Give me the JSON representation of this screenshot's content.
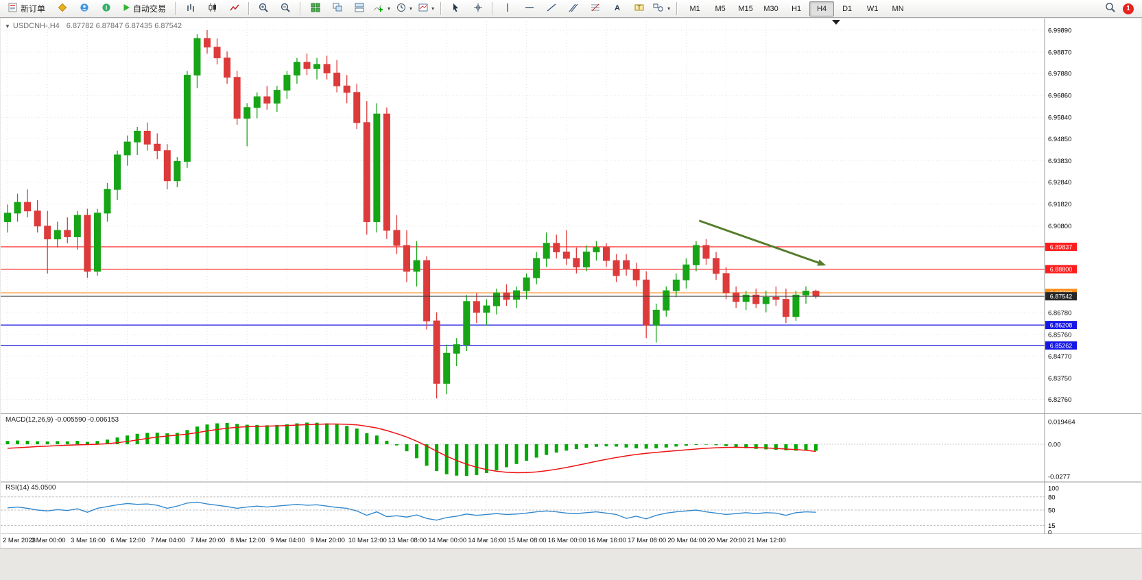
{
  "toolbar": {
    "new_order": "新订单",
    "auto_trading": "自动交易",
    "timeframes": [
      "M1",
      "M5",
      "M15",
      "M30",
      "H1",
      "H4",
      "D1",
      "W1",
      "MN"
    ],
    "active_timeframe": "H4",
    "notification_badge": "1"
  },
  "chart": {
    "title": "USDCNH-,H4",
    "ohlc": "6.87782 6.87847 6.87435 6.87542"
  },
  "indicators": {
    "macd": {
      "name": "MACD(12,26,9)",
      "main_value": "-0.005590",
      "signal_value": "-0.006153"
    },
    "rsi": {
      "name": "RSI(14)",
      "value": "45.0500"
    }
  },
  "colors": {
    "up": "#17a517",
    "down": "#dd3b3b",
    "macd_hist": "#00aa00",
    "macd_signal": "#ee1111",
    "rsi_line": "#3388cc",
    "grid": "#e3e3e3",
    "arrow": "#567d2b",
    "axis_text": "#000000",
    "red_line": "#ff2222",
    "blue_line": "#1414e0",
    "orange_line": "#ff8c19",
    "current_line": "#3c3c3c"
  },
  "chart_data": {
    "type": "candlestick",
    "title": "USDCNH-,H4",
    "ylim": [
      6.823,
      7.003
    ],
    "price_axis": [
      "6.99890",
      "6.98870",
      "6.97880",
      "6.96860",
      "6.95840",
      "6.94850",
      "6.93830",
      "6.92840",
      "6.91820",
      "6.90800",
      "6.86780",
      "6.85760",
      "6.84770",
      "6.83750",
      "6.82760"
    ],
    "hlines": [
      {
        "price": 6.89837,
        "label": "6.89837",
        "line": "#ff2222",
        "badge": "#ff1d1d"
      },
      {
        "price": 6.888,
        "label": "6.88800",
        "line": "#ff2222",
        "badge": "#ff1d1d"
      },
      {
        "price": 6.87702,
        "label": "6.87702",
        "line": "#ff8c19",
        "badge": "#ff8c19"
      },
      {
        "price": 6.86208,
        "label": "6.86208",
        "line": "#1414e0",
        "badge": "#1616e6"
      },
      {
        "price": 6.85262,
        "label": "6.85262",
        "line": "#1414e0",
        "badge": "#1616e6"
      }
    ],
    "current": {
      "price": 6.87542,
      "label": "6.87542",
      "line": "#3c3c3c",
      "badge": "#262626"
    },
    "candles": [
      [
        6.91,
        6.918,
        6.905,
        6.914
      ],
      [
        6.914,
        6.923,
        6.91,
        6.919
      ],
      [
        6.919,
        6.925,
        6.912,
        6.915
      ],
      [
        6.915,
        6.92,
        6.905,
        6.908
      ],
      [
        6.908,
        6.915,
        6.886,
        6.902
      ],
      [
        6.902,
        6.91,
        6.898,
        6.906
      ],
      [
        6.906,
        6.912,
        6.9,
        6.903
      ],
      [
        6.903,
        6.915,
        6.897,
        6.913
      ],
      [
        6.913,
        6.916,
        6.884,
        6.887
      ],
      [
        6.887,
        6.916,
        6.885,
        6.914
      ],
      [
        6.914,
        6.928,
        6.91,
        6.925
      ],
      [
        6.925,
        6.943,
        6.92,
        6.941
      ],
      [
        6.941,
        6.95,
        6.936,
        6.947
      ],
      [
        6.947,
        6.954,
        6.941,
        6.952
      ],
      [
        6.952,
        6.956,
        6.943,
        6.946
      ],
      [
        6.946,
        6.951,
        6.939,
        6.943
      ],
      [
        6.943,
        6.946,
        6.925,
        6.929
      ],
      [
        6.929,
        6.94,
        6.926,
        6.938
      ],
      [
        6.938,
        6.98,
        6.935,
        6.978
      ],
      [
        6.978,
        6.997,
        6.972,
        6.995
      ],
      [
        6.995,
        6.9989,
        6.988,
        6.991
      ],
      [
        6.991,
        6.995,
        6.983,
        6.986
      ],
      [
        6.986,
        6.989,
        6.974,
        6.977
      ],
      [
        6.977,
        6.98,
        6.955,
        6.958
      ],
      [
        6.958,
        6.965,
        6.945,
        6.963
      ],
      [
        6.963,
        6.97,
        6.958,
        6.968
      ],
      [
        6.968,
        6.973,
        6.962,
        6.965
      ],
      [
        6.965,
        6.973,
        6.961,
        6.971
      ],
      [
        6.971,
        6.98,
        6.967,
        6.978
      ],
      [
        6.978,
        6.986,
        6.974,
        6.984
      ],
      [
        6.984,
        6.988,
        6.978,
        6.981
      ],
      [
        6.981,
        6.986,
        6.976,
        6.983
      ],
      [
        6.983,
        6.987,
        6.976,
        6.979
      ],
      [
        6.979,
        6.985,
        6.97,
        6.973
      ],
      [
        6.973,
        6.978,
        6.965,
        6.97
      ],
      [
        6.97,
        6.974,
        6.953,
        6.956
      ],
      [
        6.956,
        6.966,
        6.904,
        6.91
      ],
      [
        6.91,
        6.965,
        6.905,
        6.96
      ],
      [
        6.96,
        6.963,
        6.902,
        6.906
      ],
      [
        6.906,
        6.913,
        6.895,
        6.899
      ],
      [
        6.899,
        6.906,
        6.882,
        6.887
      ],
      [
        6.887,
        6.901,
        6.88,
        6.892
      ],
      [
        6.892,
        6.894,
        6.86,
        6.864
      ],
      [
        6.864,
        6.868,
        6.828,
        6.835
      ],
      [
        6.835,
        6.853,
        6.83,
        6.849
      ],
      [
        6.849,
        6.856,
        6.843,
        6.853
      ],
      [
        6.853,
        6.876,
        6.85,
        6.873
      ],
      [
        6.873,
        6.877,
        6.863,
        6.868
      ],
      [
        6.868,
        6.874,
        6.862,
        6.871
      ],
      [
        6.871,
        6.879,
        6.867,
        6.877
      ],
      [
        6.877,
        6.881,
        6.871,
        6.874
      ],
      [
        6.874,
        6.88,
        6.87,
        6.878
      ],
      [
        6.878,
        6.886,
        6.874,
        6.884
      ],
      [
        6.884,
        6.896,
        6.881,
        6.893
      ],
      [
        6.893,
        6.905,
        6.889,
        6.9
      ],
      [
        6.9,
        6.904,
        6.893,
        6.896
      ],
      [
        6.896,
        6.906,
        6.89,
        6.893
      ],
      [
        6.893,
        6.898,
        6.886,
        6.889
      ],
      [
        6.889,
        6.899,
        6.887,
        6.896
      ],
      [
        6.896,
        6.901,
        6.892,
        6.898
      ],
      [
        6.898,
        6.9,
        6.889,
        6.892
      ],
      [
        6.892,
        6.895,
        6.882,
        6.885
      ],
      [
        6.892,
        6.895,
        6.885,
        6.888
      ],
      [
        6.888,
        6.891,
        6.88,
        6.883
      ],
      [
        6.883,
        6.887,
        6.856,
        6.862
      ],
      [
        6.862,
        6.872,
        6.854,
        6.869
      ],
      [
        6.869,
        6.88,
        6.866,
        6.878
      ],
      [
        6.878,
        6.886,
        6.875,
        6.883
      ],
      [
        6.883,
        6.893,
        6.879,
        6.89
      ],
      [
        6.89,
        6.901,
        6.887,
        6.899
      ],
      [
        6.899,
        6.902,
        6.89,
        6.893
      ],
      [
        6.893,
        6.896,
        6.883,
        6.886
      ],
      [
        6.886,
        6.889,
        6.874,
        6.877
      ],
      [
        6.877,
        6.88,
        6.87,
        6.873
      ],
      [
        6.873,
        6.878,
        6.869,
        6.876
      ],
      [
        6.876,
        6.879,
        6.87,
        6.872
      ],
      [
        6.872,
        6.878,
        6.868,
        6.875
      ],
      [
        6.875,
        6.88,
        6.871,
        6.874
      ],
      [
        6.874,
        6.879,
        6.863,
        6.866
      ],
      [
        6.866,
        6.878,
        6.864,
        6.876
      ],
      [
        6.876,
        6.88,
        6.872,
        6.87782
      ],
      [
        6.87782,
        6.87847,
        6.87435,
        6.87542
      ]
    ],
    "time_labels": [
      "2 Mar 2023",
      "3 Mar 00:00",
      "3 Mar 16:00",
      "6 Mar 12:00",
      "7 Mar 04:00",
      "7 Mar 20:00",
      "8 Mar 12:00",
      "9 Mar 04:00",
      "9 Mar 20:00",
      "10 Mar 12:00",
      "13 Mar 08:00",
      "14 Mar 00:00",
      "14 Mar 16:00",
      "15 Mar 08:00",
      "16 Mar 00:00",
      "16 Mar 16:00",
      "17 Mar 08:00",
      "20 Mar 04:00",
      "20 Mar 20:00",
      "21 Mar 12:00"
    ],
    "time_label_step": 4,
    "trend_arrow": {
      "from_bar": 69.3,
      "from_price": 6.9105,
      "to_bar": 81.5,
      "to_price": 6.8906
    },
    "macd": {
      "axis": [
        "0.019464",
        "0.00",
        "-0.0277"
      ],
      "hist": [
        0.0028,
        0.0032,
        0.003,
        0.0026,
        0.0024,
        0.0027,
        0.0025,
        0.0029,
        0.002,
        0.0028,
        0.004,
        0.0058,
        0.0075,
        0.009,
        0.0098,
        0.01,
        0.0094,
        0.0098,
        0.0122,
        0.0152,
        0.017,
        0.018,
        0.0183,
        0.0175,
        0.0168,
        0.0166,
        0.0163,
        0.0166,
        0.0172,
        0.018,
        0.0186,
        0.0185,
        0.018,
        0.017,
        0.0158,
        0.0135,
        0.0095,
        0.0075,
        0.003,
        -0.001,
        -0.006,
        -0.012,
        -0.0185,
        -0.023,
        -0.0258,
        -0.027,
        -0.0272,
        -0.0265,
        -0.0248,
        -0.0225,
        -0.0198,
        -0.017,
        -0.0142,
        -0.0115,
        -0.0092,
        -0.0072,
        -0.0055,
        -0.0042,
        -0.003,
        -0.0022,
        -0.0018,
        -0.002,
        -0.0028,
        -0.0035,
        -0.0038,
        -0.0035,
        -0.0028,
        -0.002,
        -0.0012,
        -0.0006,
        -0.0004,
        -0.0008,
        -0.0016,
        -0.0026,
        -0.0034,
        -0.004,
        -0.0044,
        -0.0048,
        -0.0052,
        -0.0055,
        -0.0056,
        -0.0056
      ],
      "signal": [
        -0.0035,
        -0.003,
        -0.0025,
        -0.002,
        -0.0016,
        -0.0012,
        -0.0008,
        -0.0005,
        -0.0003,
        0.0,
        0.0005,
        0.0013,
        0.0024,
        0.0037,
        0.005,
        0.0062,
        0.0071,
        0.0078,
        0.0087,
        0.01,
        0.0114,
        0.0127,
        0.0138,
        0.0146,
        0.0151,
        0.0154,
        0.0156,
        0.0158,
        0.0161,
        0.0165,
        0.0169,
        0.0172,
        0.0174,
        0.0174,
        0.0172,
        0.0167,
        0.0155,
        0.014,
        0.0118,
        0.0092,
        0.0062,
        0.0026,
        -0.0015,
        -0.006,
        -0.0103,
        -0.014,
        -0.0172,
        -0.0198,
        -0.0218,
        -0.0232,
        -0.0241,
        -0.0245,
        -0.0244,
        -0.0238,
        -0.0228,
        -0.0215,
        -0.02,
        -0.0183,
        -0.0165,
        -0.0147,
        -0.013,
        -0.0114,
        -0.01,
        -0.0088,
        -0.0078,
        -0.007,
        -0.0062,
        -0.0055,
        -0.0048,
        -0.0041,
        -0.0035,
        -0.003,
        -0.0027,
        -0.0026,
        -0.0027,
        -0.0029,
        -0.0032,
        -0.0036,
        -0.0041,
        -0.0046,
        -0.0052,
        -0.0062
      ]
    },
    "rsi": {
      "axis": [
        "100",
        "80",
        "50",
        "15",
        "0"
      ],
      "levels": [
        80,
        50,
        15
      ],
      "values": [
        55,
        57,
        54,
        50,
        48,
        51,
        49,
        53,
        45,
        54,
        58,
        62,
        65,
        63,
        64,
        61,
        54,
        59,
        66,
        68,
        64,
        61,
        58,
        54,
        57,
        59,
        57,
        59,
        61,
        63,
        61,
        62,
        59,
        56,
        54,
        48,
        38,
        46,
        35,
        37,
        34,
        39,
        31,
        27,
        33,
        36,
        41,
        38,
        40,
        42,
        40,
        41,
        43,
        46,
        48,
        46,
        43,
        42,
        44,
        46,
        43,
        40,
        31,
        36,
        30,
        38,
        43,
        46,
        48,
        50,
        46,
        43,
        40,
        42,
        44,
        42,
        44,
        43,
        38,
        44,
        46,
        45
      ]
    }
  }
}
